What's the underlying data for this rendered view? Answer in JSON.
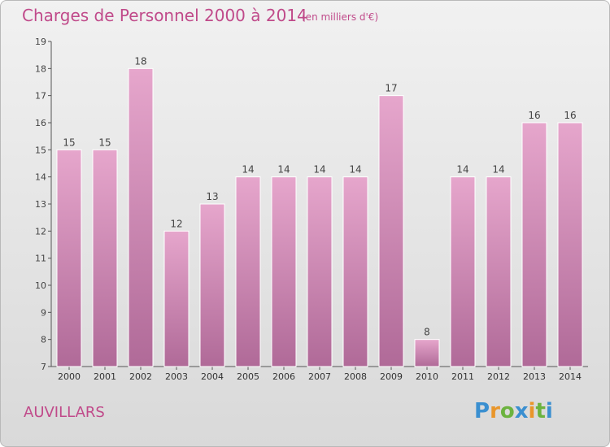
{
  "header": {
    "title": "Charges de Personnel 2000 à 2014",
    "subtitle": "(en milliers d'€)"
  },
  "footer": {
    "place": "AUVILLARS",
    "logo_text": "Proxiti"
  },
  "colors": {
    "title": "#c04a8a",
    "bar_top": "#e6a6cc",
    "bar_bottom": "#b06a98",
    "bar_stroke": "#ffffff",
    "logo": [
      "#3a8fd0",
      "#e9962b",
      "#6cb33f",
      "#3a8fd0",
      "#e9962b",
      "#6cb33f",
      "#3a8fd0"
    ]
  },
  "chart_data": {
    "type": "bar",
    "categories": [
      "2000",
      "2001",
      "2002",
      "2003",
      "2004",
      "2005",
      "2006",
      "2007",
      "2008",
      "2009",
      "2010",
      "2011",
      "2012",
      "2013",
      "2014"
    ],
    "values": [
      15,
      15,
      18,
      12,
      13,
      14,
      14,
      14,
      14,
      17,
      8,
      14,
      14,
      16,
      16
    ],
    "title": "Charges de Personnel 2000 à 2014",
    "xlabel": "",
    "ylabel": "",
    "ylim": [
      7,
      19
    ],
    "yticks": [
      7,
      8,
      9,
      10,
      11,
      12,
      13,
      14,
      15,
      16,
      17,
      18,
      19
    ],
    "grid": false,
    "data_labels": true
  }
}
